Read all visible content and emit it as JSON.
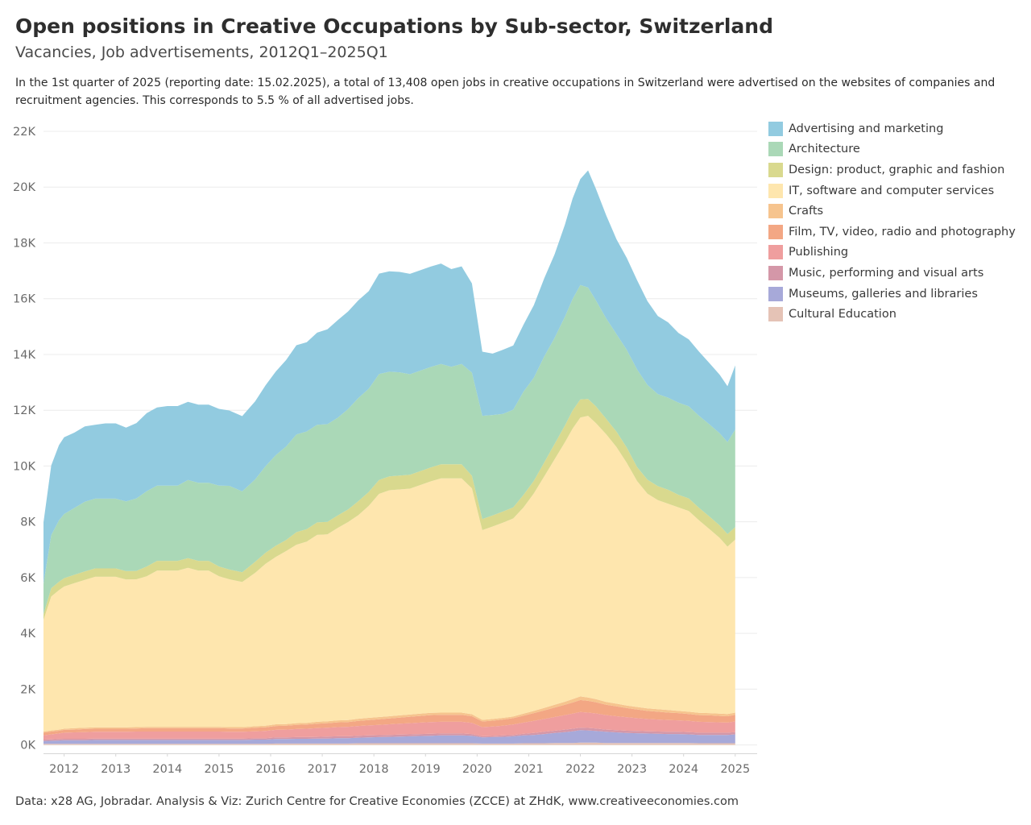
{
  "header": {
    "title": "Open positions in Creative Occupations by Sub-sector, Switzerland",
    "subtitle": "Vacancies, Job advertisements, 2012Q1–2025Q1",
    "description": "In the 1st quarter of 2025 (reporting date: 15.02.2025), a total of 13,408 open jobs in creative occupations in Switzerland were advertised on the websites of companies and recruitment agencies. This corresponds to 5.5 % of all advertised jobs."
  },
  "source": "Data: x28 AG, Jobradar. Analysis & Viz: Zurich Centre for Creative Economies (ZCCE) at ZHdK, www.creativeeconomies.com",
  "chart_data": {
    "type": "area",
    "stacked": true,
    "x_unit": "year (monthly observations)",
    "x": [
      2011.6,
      2011.75,
      2011.9,
      2012.0,
      2012.2,
      2012.4,
      2012.6,
      2012.8,
      2013.0,
      2013.2,
      2013.4,
      2013.6,
      2013.8,
      2014.0,
      2014.2,
      2014.4,
      2014.6,
      2014.8,
      2015.0,
      2015.2,
      2015.45,
      2015.7,
      2015.9,
      2016.1,
      2016.3,
      2016.5,
      2016.7,
      2016.9,
      2017.1,
      2017.3,
      2017.5,
      2017.7,
      2017.9,
      2018.1,
      2018.3,
      2018.5,
      2018.7,
      2018.9,
      2019.1,
      2019.3,
      2019.5,
      2019.7,
      2019.9,
      2020.1,
      2020.3,
      2020.5,
      2020.7,
      2020.9,
      2021.1,
      2021.3,
      2021.5,
      2021.7,
      2021.85,
      2022.0,
      2022.15,
      2022.3,
      2022.5,
      2022.7,
      2022.9,
      2023.1,
      2023.3,
      2023.5,
      2023.7,
      2023.9,
      2024.1,
      2024.3,
      2024.5,
      2024.7,
      2024.85,
      2025.0
    ],
    "xlim": [
      2011.6,
      2025.05
    ],
    "ylim": [
      -300,
      22000
    ],
    "y_ticks": [
      0,
      2000,
      4000,
      6000,
      8000,
      10000,
      12000,
      14000,
      16000,
      18000,
      20000,
      22000
    ],
    "y_tick_labels": [
      "0K",
      "2K",
      "4K",
      "6K",
      "8K",
      "10K",
      "12K",
      "14K",
      "16K",
      "18K",
      "20K",
      "22K"
    ],
    "x_ticks": [
      2012,
      2013,
      2014,
      2015,
      2016,
      2017,
      2018,
      2019,
      2020,
      2021,
      2022,
      2023,
      2024,
      2025
    ],
    "x_tick_labels": [
      "2012",
      "2013",
      "2014",
      "2015",
      "2016",
      "2017",
      "2018",
      "2019",
      "2020",
      "2021",
      "2022",
      "2023",
      "2024",
      "2025"
    ],
    "stack_order": "bottom-to-top is the reverse of the legend order",
    "grid": true,
    "legend_position": "right",
    "series": [
      {
        "name": "Advertising and marketing",
        "color": "#92cbe0",
        "values": [
          2200,
          2500,
          2700,
          2750,
          2700,
          2700,
          2650,
          2700,
          2700,
          2650,
          2700,
          2800,
          2800,
          2850,
          2850,
          2800,
          2800,
          2800,
          2750,
          2700,
          2700,
          2800,
          2900,
          3000,
          3100,
          3200,
          3200,
          3300,
          3400,
          3500,
          3500,
          3500,
          3500,
          3600,
          3600,
          3600,
          3600,
          3600,
          3600,
          3600,
          3500,
          3500,
          3200,
          2300,
          2200,
          2300,
          2300,
          2400,
          2600,
          2800,
          3000,
          3300,
          3600,
          3800,
          4200,
          4000,
          3700,
          3400,
          3300,
          3200,
          3000,
          2800,
          2700,
          2500,
          2400,
          2300,
          2200,
          2100,
          2000,
          2300
        ]
      },
      {
        "name": "Architecture",
        "color": "#aad8b7",
        "values": [
          1100,
          1900,
          2200,
          2300,
          2400,
          2500,
          2500,
          2500,
          2500,
          2500,
          2600,
          2700,
          2700,
          2700,
          2700,
          2800,
          2800,
          2800,
          2900,
          3000,
          2900,
          2950,
          3100,
          3250,
          3350,
          3500,
          3500,
          3500,
          3500,
          3500,
          3600,
          3700,
          3700,
          3800,
          3750,
          3700,
          3600,
          3600,
          3600,
          3600,
          3500,
          3600,
          3700,
          3700,
          3600,
          3500,
          3500,
          3700,
          3700,
          3800,
          3800,
          3900,
          4000,
          4100,
          4000,
          3800,
          3600,
          3500,
          3500,
          3500,
          3400,
          3300,
          3300,
          3300,
          3300,
          3300,
          3300,
          3300,
          3300,
          3500
        ]
      },
      {
        "name": "Design: product, graphic and fashion",
        "color": "#d9d98e",
        "values": [
          200,
          300,
          300,
          300,
          300,
          300,
          300,
          300,
          300,
          300,
          300,
          350,
          350,
          350,
          350,
          350,
          350,
          350,
          350,
          350,
          350,
          400,
          400,
          400,
          400,
          450,
          450,
          450,
          450,
          450,
          450,
          500,
          500,
          500,
          500,
          500,
          500,
          500,
          500,
          500,
          500,
          500,
          450,
          400,
          400,
          400,
          400,
          450,
          450,
          500,
          550,
          600,
          650,
          650,
          600,
          600,
          550,
          550,
          550,
          500,
          500,
          500,
          500,
          450,
          450,
          450,
          450,
          450,
          450,
          450
        ]
      },
      {
        "name": "IT, software and computer services",
        "color": "#fee6ae",
        "values": [
          4000,
          4800,
          5000,
          5100,
          5200,
          5300,
          5400,
          5400,
          5400,
          5300,
          5300,
          5400,
          5600,
          5600,
          5600,
          5700,
          5600,
          5600,
          5400,
          5300,
          5200,
          5500,
          5800,
          6000,
          6200,
          6400,
          6500,
          6700,
          6700,
          6900,
          7100,
          7300,
          7600,
          8000,
          8100,
          8100,
          8100,
          8200,
          8300,
          8400,
          8400,
          8400,
          8100,
          6800,
          6900,
          7000,
          7100,
          7400,
          7800,
          8300,
          8800,
          9300,
          9700,
          10000,
          10100,
          9900,
          9600,
          9200,
          8700,
          8100,
          7700,
          7500,
          7400,
          7300,
          7200,
          6900,
          6600,
          6300,
          6000,
          6200
        ]
      },
      {
        "name": "Crafts",
        "color": "#f6c48e",
        "values": [
          40,
          40,
          40,
          40,
          50,
          50,
          50,
          50,
          50,
          50,
          50,
          50,
          50,
          50,
          50,
          50,
          50,
          50,
          50,
          50,
          50,
          50,
          60,
          60,
          60,
          60,
          60,
          70,
          70,
          70,
          70,
          80,
          80,
          80,
          80,
          80,
          80,
          80,
          80,
          80,
          80,
          80,
          70,
          60,
          60,
          60,
          60,
          70,
          80,
          90,
          100,
          110,
          120,
          130,
          120,
          110,
          100,
          100,
          90,
          90,
          90,
          90,
          90,
          80,
          80,
          80,
          80,
          80,
          80,
          80
        ]
      },
      {
        "name": "Film, TV, video, radio and photography",
        "color": "#f3a784",
        "values": [
          100,
          100,
          100,
          100,
          100,
          110,
          110,
          110,
          110,
          110,
          110,
          120,
          120,
          120,
          120,
          120,
          120,
          120,
          120,
          120,
          120,
          130,
          130,
          140,
          140,
          150,
          150,
          160,
          160,
          170,
          170,
          180,
          190,
          200,
          210,
          220,
          230,
          240,
          250,
          250,
          250,
          250,
          240,
          200,
          210,
          220,
          230,
          250,
          280,
          310,
          340,
          370,
          400,
          430,
          420,
          400,
          370,
          350,
          330,
          310,
          290,
          280,
          270,
          260,
          250,
          240,
          240,
          230,
          230,
          240
        ]
      },
      {
        "name": "Publishing",
        "color": "#ef9e9e",
        "values": [
          150,
          180,
          200,
          220,
          230,
          240,
          240,
          240,
          240,
          240,
          250,
          250,
          250,
          250,
          250,
          250,
          250,
          250,
          250,
          240,
          240,
          250,
          260,
          270,
          280,
          290,
          300,
          310,
          320,
          330,
          340,
          350,
          360,
          370,
          380,
          390,
          400,
          410,
          420,
          420,
          420,
          420,
          400,
          330,
          340,
          350,
          370,
          400,
          430,
          460,
          490,
          520,
          540,
          560,
          550,
          540,
          520,
          500,
          480,
          460,
          440,
          430,
          420,
          410,
          400,
          390,
          380,
          370,
          360,
          380
        ]
      },
      {
        "name": "Music, performing and visual arts",
        "color": "#d497a8",
        "values": [
          50,
          50,
          50,
          50,
          50,
          50,
          50,
          50,
          50,
          50,
          50,
          50,
          50,
          50,
          50,
          50,
          50,
          50,
          50,
          50,
          50,
          50,
          50,
          60,
          60,
          60,
          60,
          60,
          70,
          70,
          70,
          70,
          70,
          70,
          70,
          70,
          70,
          70,
          70,
          70,
          70,
          70,
          60,
          40,
          40,
          50,
          50,
          60,
          70,
          80,
          80,
          90,
          90,
          90,
          90,
          90,
          80,
          80,
          80,
          80,
          80,
          80,
          80,
          80,
          80,
          80,
          80,
          80,
          80,
          80
        ]
      },
      {
        "name": "Museums, galleries and libraries",
        "color": "#a7a9d9",
        "values": [
          100,
          110,
          120,
          130,
          130,
          130,
          140,
          140,
          140,
          140,
          140,
          140,
          140,
          140,
          140,
          140,
          140,
          140,
          140,
          140,
          140,
          150,
          150,
          160,
          160,
          170,
          170,
          180,
          180,
          190,
          190,
          200,
          210,
          220,
          230,
          240,
          250,
          260,
          270,
          280,
          280,
          280,
          270,
          220,
          230,
          240,
          260,
          280,
          300,
          330,
          360,
          390,
          420,
          450,
          440,
          420,
          400,
          380,
          360,
          350,
          340,
          330,
          320,
          320,
          310,
          300,
          300,
          300,
          300,
          320
        ]
      },
      {
        "name": "Cultural Education",
        "color": "#e5c3b6",
        "values": [
          40,
          40,
          40,
          40,
          40,
          40,
          40,
          40,
          40,
          40,
          40,
          40,
          40,
          40,
          40,
          40,
          40,
          40,
          40,
          40,
          40,
          40,
          40,
          50,
          50,
          50,
          50,
          50,
          50,
          50,
          50,
          60,
          60,
          60,
          60,
          60,
          60,
          60,
          60,
          60,
          60,
          60,
          60,
          50,
          50,
          50,
          50,
          60,
          60,
          60,
          70,
          70,
          70,
          80,
          80,
          80,
          70,
          70,
          70,
          70,
          70,
          70,
          70,
          70,
          70,
          60,
          60,
          60,
          60,
          60
        ]
      }
    ]
  }
}
